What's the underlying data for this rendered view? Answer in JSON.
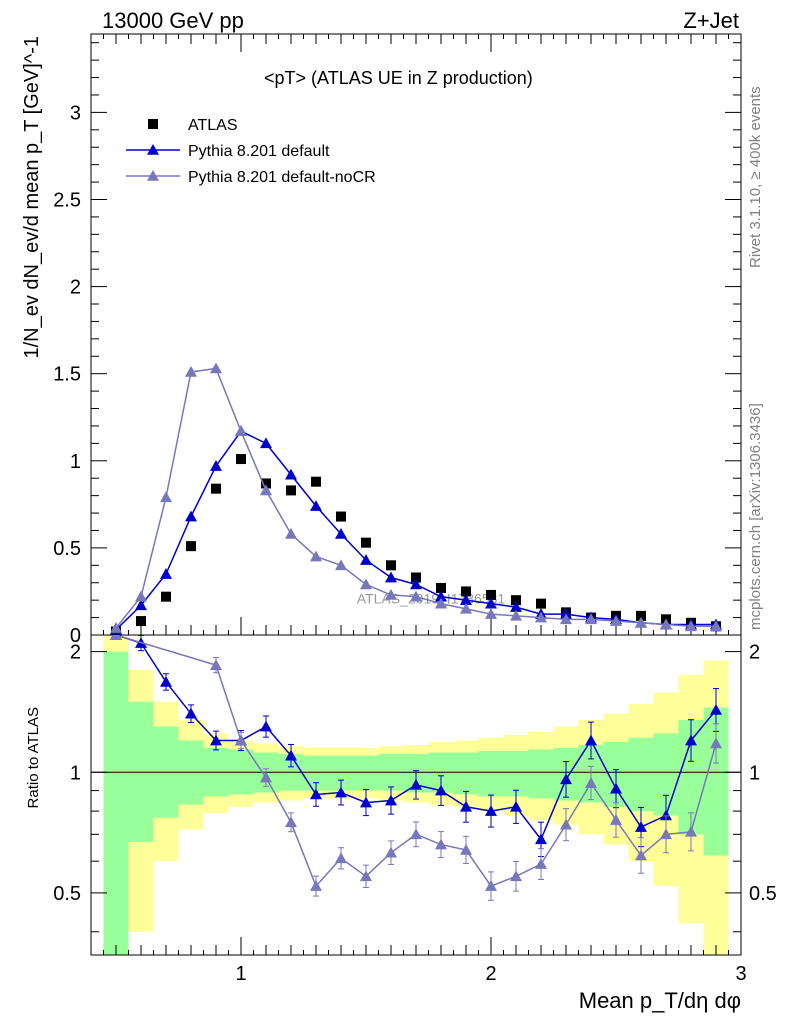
{
  "header": {
    "left": "13000 GeV pp",
    "right": "Z+Jet"
  },
  "side_text": {
    "top": "Rivet 3.1.10, ≥ 400k events",
    "bottom": "mcplots.cern.ch [arXiv:1306.3436]"
  },
  "chart_data": [
    {
      "type": "scatter",
      "title": "<pT> (ATLAS UE in Z production)",
      "ylabel": "1/N_ev dN_ev/d mean p_T [GeV]^-1",
      "xlim": [
        0.4,
        3.0
      ],
      "ylim": [
        0,
        3.45
      ],
      "y_ticks": [
        "0",
        "0.5",
        "1",
        "1.5",
        "2",
        "2.5",
        "3"
      ],
      "legend_position": "top-left",
      "watermark": "ATLAS_2019_I1736531",
      "series": [
        {
          "name": "ATLAS",
          "color": "#000000",
          "marker": "square",
          "x": [
            0.5,
            0.6,
            0.7,
            0.8,
            0.9,
            1.0,
            1.1,
            1.2,
            1.3,
            1.4,
            1.5,
            1.6,
            1.7,
            1.8,
            1.9,
            2.0,
            2.1,
            2.2,
            2.3,
            2.4,
            2.5,
            2.6,
            2.7,
            2.8,
            2.9
          ],
          "y": [
            0.02,
            0.08,
            0.22,
            0.51,
            0.84,
            1.01,
            0.87,
            0.83,
            0.88,
            0.68,
            0.53,
            0.4,
            0.33,
            0.27,
            0.25,
            0.23,
            0.2,
            0.18,
            0.13,
            0.1,
            0.11,
            0.11,
            0.09,
            0.07,
            0.05
          ]
        },
        {
          "name": "Pythia 8.201 default",
          "color": "#0000cc",
          "marker": "triangle",
          "x": [
            0.5,
            0.6,
            0.7,
            0.8,
            0.9,
            1.0,
            1.1,
            1.2,
            1.3,
            1.4,
            1.5,
            1.6,
            1.7,
            1.8,
            1.9,
            2.0,
            2.1,
            2.2,
            2.3,
            2.4,
            2.5,
            2.6,
            2.7,
            2.8,
            2.9
          ],
          "y": [
            0.03,
            0.17,
            0.35,
            0.68,
            0.97,
            1.17,
            1.1,
            0.92,
            0.74,
            0.58,
            0.43,
            0.33,
            0.29,
            0.22,
            0.2,
            0.18,
            0.16,
            0.12,
            0.12,
            0.1,
            0.09,
            0.07,
            0.06,
            0.06,
            0.06
          ]
        },
        {
          "name": "Pythia 8.201 default-noCR",
          "color": "#7777bb",
          "marker": "triangle",
          "x": [
            0.5,
            0.6,
            0.7,
            0.8,
            0.9,
            1.0,
            1.1,
            1.2,
            1.3,
            1.4,
            1.5,
            1.6,
            1.7,
            1.8,
            1.9,
            2.0,
            2.1,
            2.2,
            2.3,
            2.4,
            2.5,
            2.6,
            2.7,
            2.8,
            2.9
          ],
          "y": [
            0.04,
            0.22,
            0.79,
            1.51,
            1.53,
            1.17,
            0.83,
            0.58,
            0.45,
            0.4,
            0.29,
            0.23,
            0.22,
            0.18,
            0.15,
            0.12,
            0.11,
            0.1,
            0.09,
            0.09,
            0.08,
            0.07,
            0.06,
            0.05,
            0.05
          ]
        }
      ]
    },
    {
      "type": "line",
      "ylabel": "Ratio to ATLAS",
      "xlabel": "Mean p_T/dη dφ",
      "xlim": [
        0.4,
        3.0
      ],
      "ylim": [
        0.35,
        2.2
      ],
      "x_ticks": [
        "1",
        "2",
        "3"
      ],
      "y_ticks": [
        "0.5",
        "1",
        "2"
      ],
      "reference_line": 1,
      "bands": {
        "x_edges": [
          0.45,
          0.55,
          0.65,
          0.75,
          0.85,
          0.95,
          1.05,
          1.15,
          1.25,
          1.35,
          1.45,
          1.55,
          1.65,
          1.75,
          1.85,
          1.95,
          2.05,
          2.15,
          2.25,
          2.35,
          2.45,
          2.55,
          2.65,
          2.75,
          2.85,
          2.95
        ],
        "inner": {
          "color": "#99ff99",
          "lo": [
            0.35,
            0.67,
            0.77,
            0.83,
            0.87,
            0.88,
            0.89,
            0.9,
            0.9,
            0.9,
            0.9,
            0.9,
            0.89,
            0.89,
            0.88,
            0.87,
            0.87,
            0.86,
            0.85,
            0.84,
            0.82,
            0.8,
            0.78,
            0.7,
            0.62
          ],
          "hi": [
            2.0,
            1.5,
            1.3,
            1.2,
            1.15,
            1.14,
            1.12,
            1.11,
            1.1,
            1.1,
            1.1,
            1.11,
            1.11,
            1.12,
            1.12,
            1.13,
            1.13,
            1.14,
            1.15,
            1.17,
            1.19,
            1.22,
            1.25,
            1.35,
            1.45
          ]
        },
        "outer": {
          "color": "#ffff99",
          "lo": [
            0.35,
            0.4,
            0.6,
            0.72,
            0.79,
            0.82,
            0.84,
            0.85,
            0.86,
            0.86,
            0.86,
            0.85,
            0.84,
            0.83,
            0.82,
            0.8,
            0.78,
            0.76,
            0.74,
            0.7,
            0.66,
            0.6,
            0.52,
            0.42,
            0.35
          ],
          "hi": [
            2.2,
            1.8,
            1.5,
            1.35,
            1.25,
            1.2,
            1.18,
            1.16,
            1.15,
            1.15,
            1.15,
            1.16,
            1.17,
            1.19,
            1.2,
            1.22,
            1.24,
            1.26,
            1.3,
            1.35,
            1.4,
            1.48,
            1.58,
            1.75,
            1.9
          ]
        }
      },
      "series": [
        {
          "name": "Pythia 8.201 default",
          "color": "#0000cc",
          "x": [
            0.5,
            0.6,
            0.7,
            0.8,
            0.9,
            1.0,
            1.1,
            1.2,
            1.3,
            1.4,
            1.5,
            1.6,
            1.7,
            1.8,
            1.9,
            2.0,
            2.1,
            2.2,
            2.3,
            2.4,
            2.5,
            2.6,
            2.7,
            2.8,
            2.9
          ],
          "y": [
            2.2,
            2.1,
            1.68,
            1.4,
            1.2,
            1.2,
            1.3,
            1.1,
            0.88,
            0.89,
            0.84,
            0.85,
            0.93,
            0.9,
            0.82,
            0.8,
            0.82,
            0.68,
            0.96,
            1.2,
            0.91,
            0.73,
            0.78,
            1.2,
            1.43
          ]
        },
        {
          "name": "Pythia 8.201 default-noCR",
          "color": "#7777bb",
          "x": [
            0.5,
            0.9,
            1.0,
            1.1,
            1.2,
            1.3,
            1.4,
            1.5,
            1.6,
            1.7,
            1.8,
            1.9,
            2.0,
            2.1,
            2.2,
            2.3,
            2.4,
            2.5,
            2.6,
            2.7,
            2.8,
            2.9
          ],
          "y": [
            2.2,
            1.85,
            1.2,
            0.97,
            0.75,
            0.52,
            0.61,
            0.55,
            0.63,
            0.7,
            0.66,
            0.64,
            0.52,
            0.55,
            0.59,
            0.74,
            0.94,
            0.76,
            0.62,
            0.7,
            0.71,
            1.18
          ]
        }
      ]
    }
  ]
}
